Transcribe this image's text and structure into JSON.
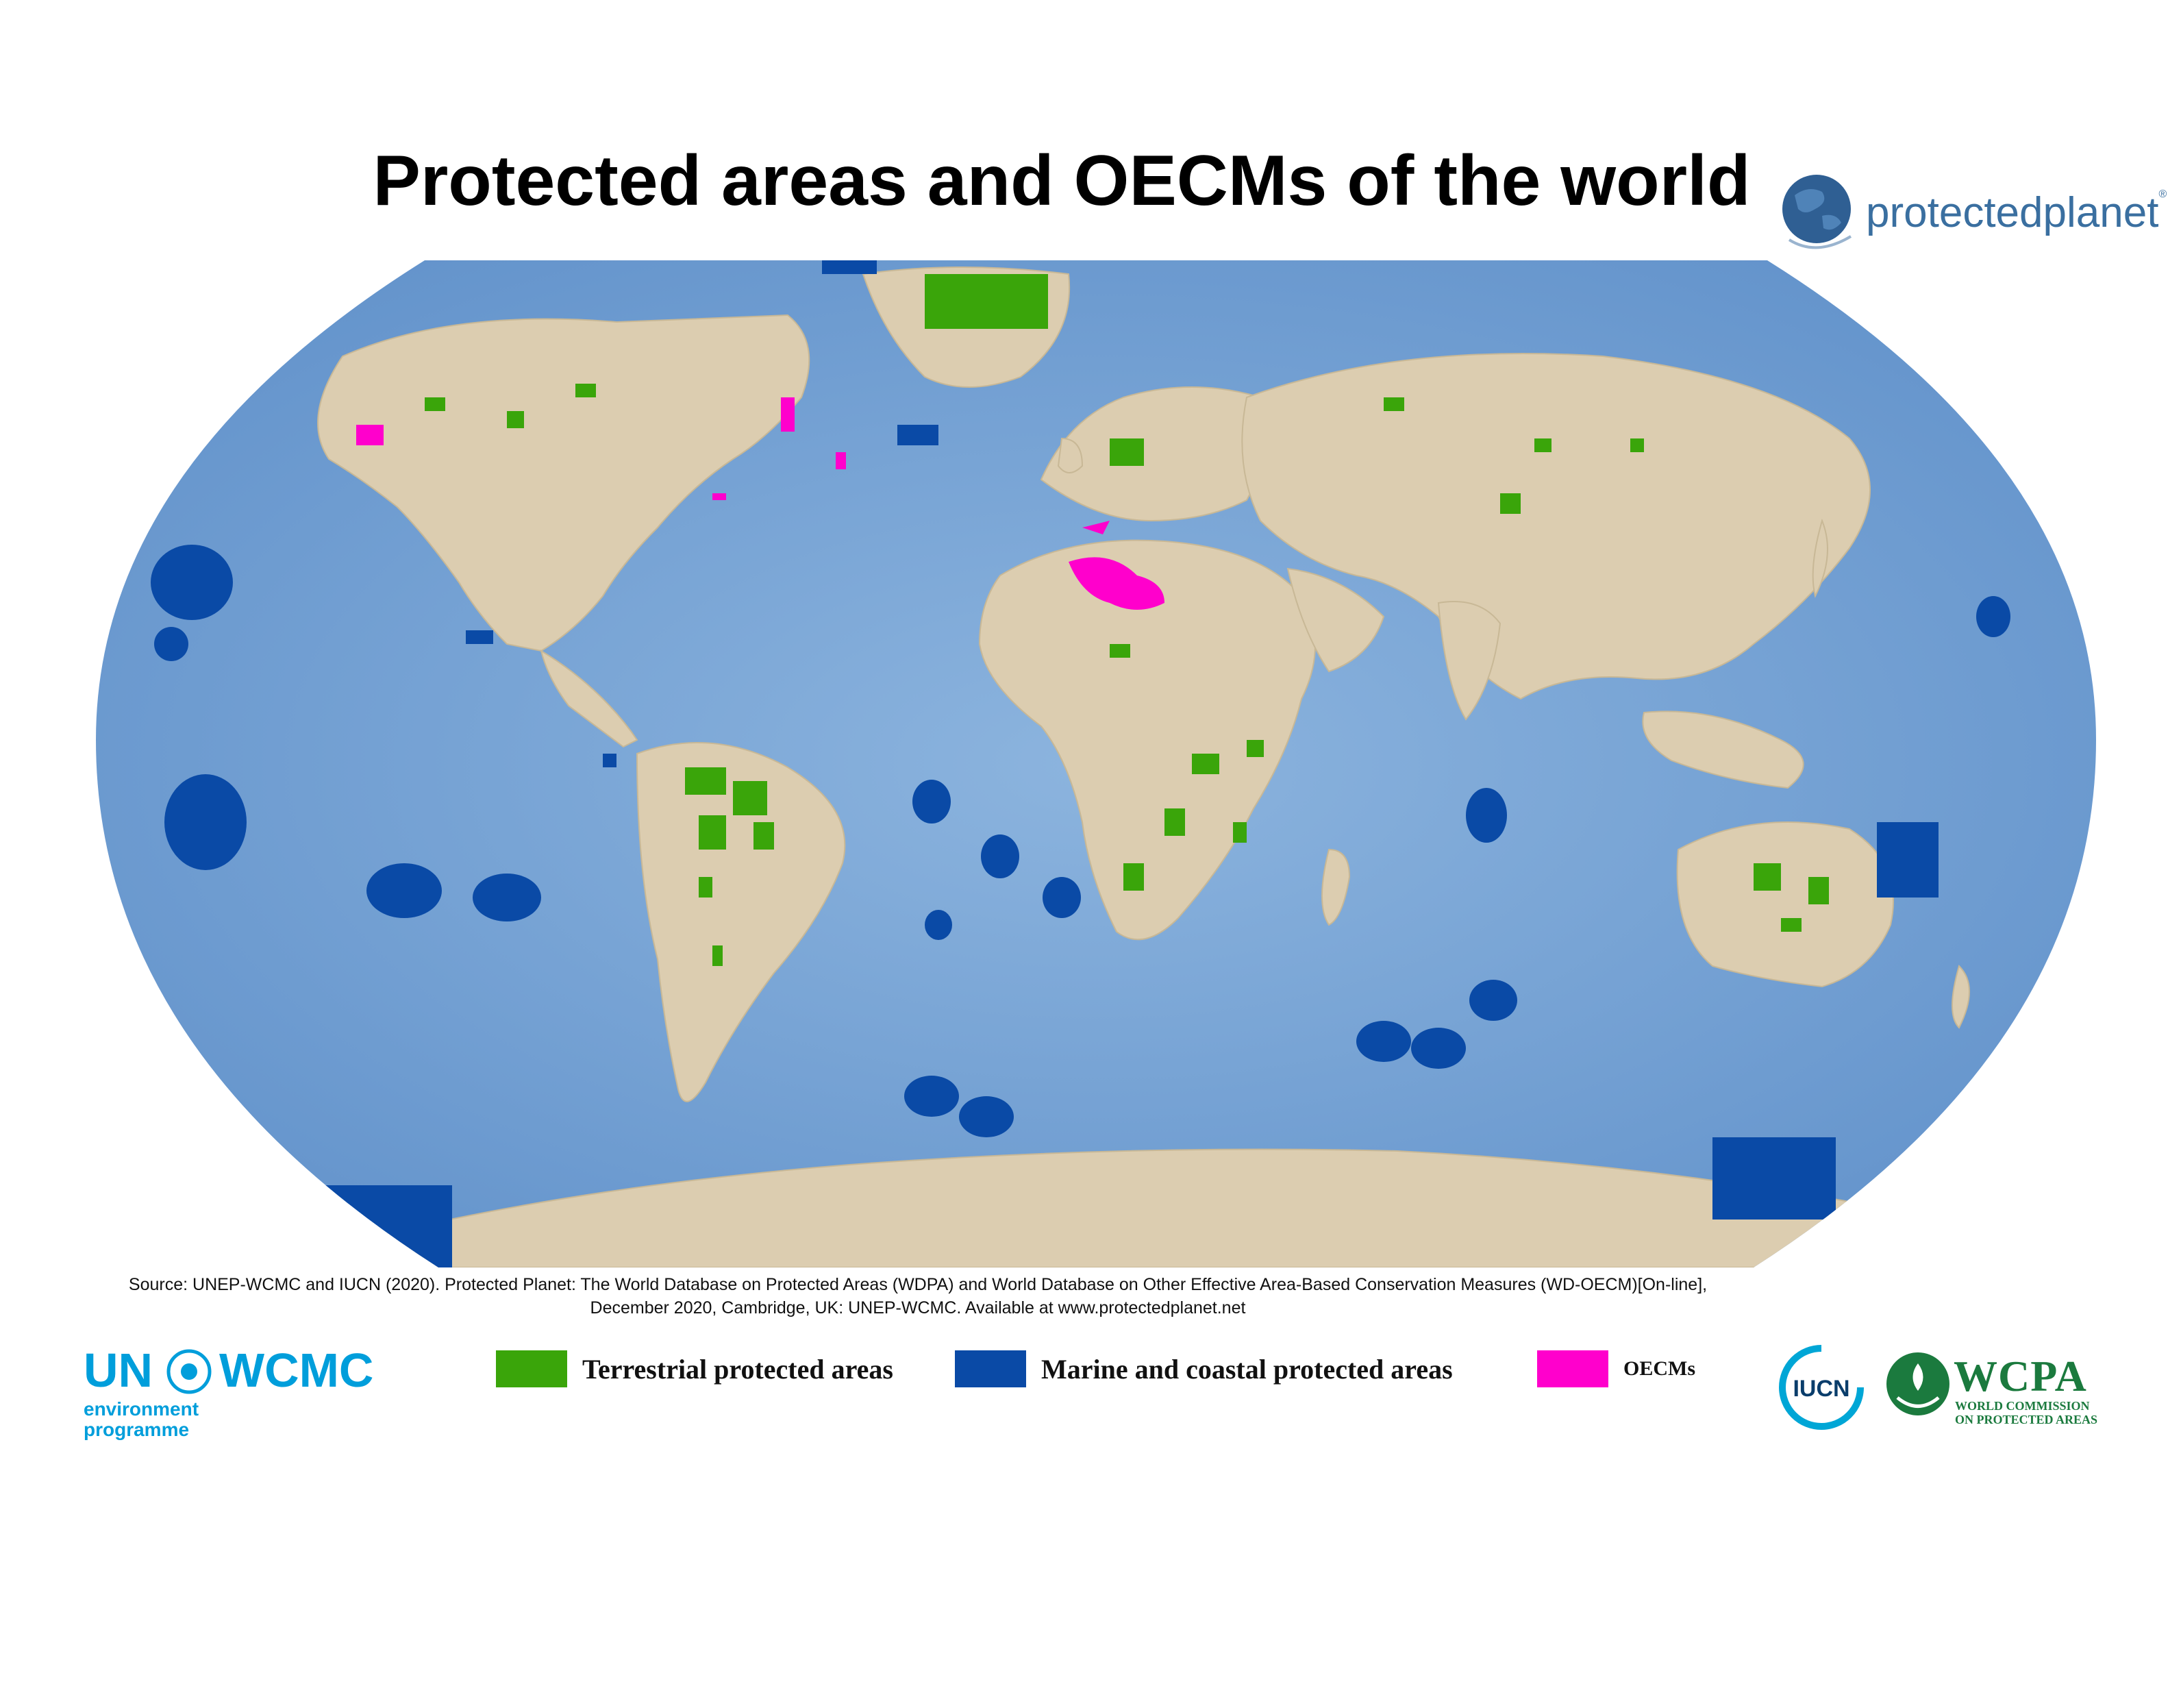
{
  "title": "Protected areas and OECMs of the world",
  "logo_protectedplanet": "protectedplanet",
  "source_line1": "Source: UNEP-WCMC and IUCN (2020). Protected Planet: The World Database on Protected Areas (WDPA) and World Database on Other Effective Area-Based Conservation Measures (WD-OECM)[On-line],",
  "source_line2": "December 2020, Cambridge, UK: UNEP-WCMC. Available at www.protectedplanet.net",
  "legend": {
    "terrestrial": "Terrestrial protected areas",
    "marine": "Marine and coastal protected areas",
    "oecm": "OECMs"
  },
  "colors": {
    "ocean": "#7aa6d6",
    "ocean_deep": "#5b8cc8",
    "land": "#dccdb0",
    "ice": "#e6ddc8",
    "terrestrial": "#3aa50a",
    "marine": "#0a4aa6",
    "oecm": "#ff00cc"
  },
  "logos": {
    "unep_un": "UN",
    "unep_wcmc": "WCMC",
    "unep_env_line1": "environment",
    "unep_env_line2": "programme",
    "iucn": "IUCN",
    "wcpa_name": "WCPA",
    "wcpa_sub1": "WORLD COMMISSION",
    "wcpa_sub2": "ON PROTECTED AREAS"
  }
}
